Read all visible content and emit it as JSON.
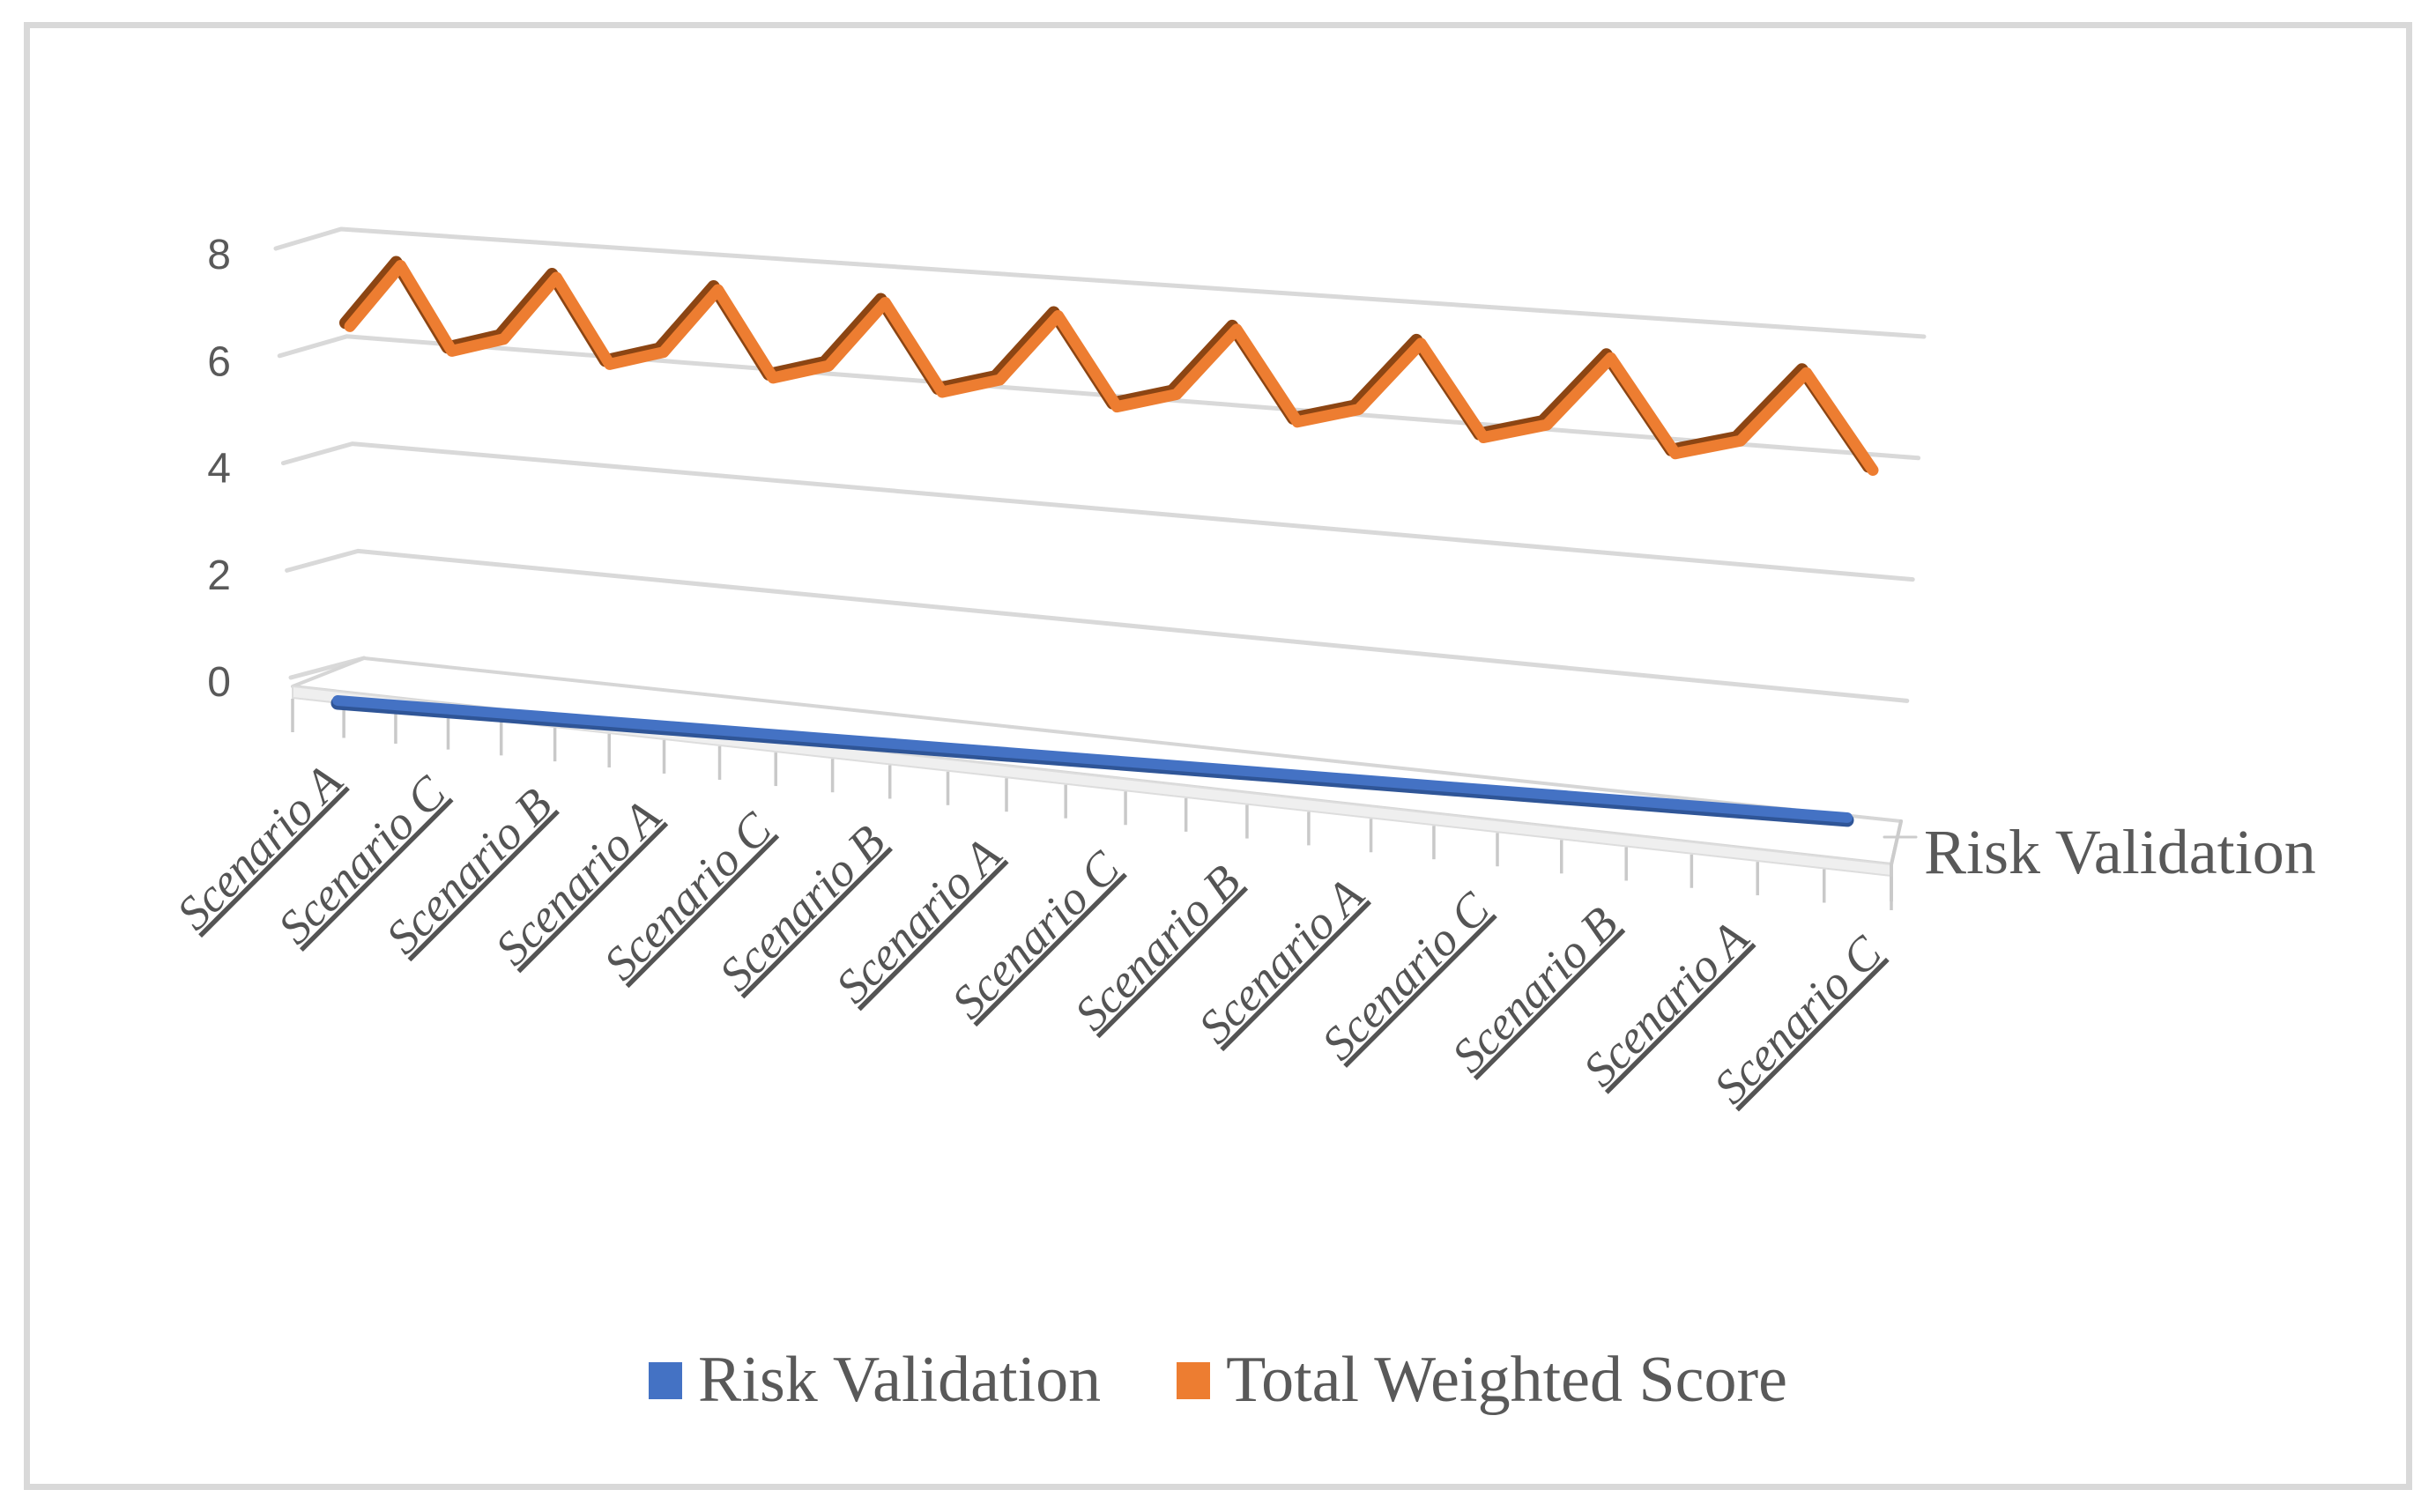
{
  "figure": {
    "background": "#FFFFFF",
    "border_color": "#D9D9D9"
  },
  "chart": {
    "depth_axis_label": "Risk Validation"
  },
  "legend": {
    "position": "bottom",
    "items": [
      {
        "label": "Risk Validation",
        "color": "#4472C4"
      },
      {
        "label": "Total Weighted Score",
        "color": "#ED7D31"
      }
    ]
  },
  "chart_data": {
    "type": "line",
    "projection": "3d",
    "title": "",
    "xlabel": "",
    "ylabel": "",
    "grid": true,
    "legend_position": "bottom",
    "categories": [
      "Scenario A",
      "Scenario B",
      "Scenario C",
      "Scenario A",
      "Scenario B",
      "Scenario C",
      "Scenario A",
      "Scenario B",
      "Scenario C",
      "Scenario A",
      "Scenario B",
      "Scenario C",
      "Scenario A",
      "Scenario B",
      "Scenario C",
      "Scenario A",
      "Scenario B",
      "Scenario C",
      "Scenario A",
      "Scenario B",
      "Scenario C",
      "Scenario A",
      "Scenario B",
      "Scenario C",
      "Scenario A",
      "Scenario B",
      "Scenario C"
    ],
    "category_axis": {
      "label_interval": 2,
      "visible_labels": [
        "Scenario A",
        "Scenario C",
        "Scenario B",
        "Scenario A",
        "Scenario C",
        "Scenario B",
        "Scenario A",
        "Scenario C",
        "Scenario B",
        "Scenario A",
        "Scenario C",
        "Scenario B",
        "Scenario A",
        "Scenario C"
      ],
      "text_color": "#545454"
    },
    "value_axis": {
      "min": 0,
      "max": 8,
      "ticks": [
        0,
        2,
        4,
        6,
        8
      ],
      "text_color": "#595959"
    },
    "depth_axis": {
      "labels": [
        "Risk Validation"
      ],
      "text_color": "#595959"
    },
    "series": [
      {
        "name": "Risk Validation",
        "color": "#4472C4",
        "shadow_color": "#2F5597",
        "values": [
          0.5,
          0.5,
          0.5,
          0.5,
          0.5,
          0.5,
          0.5,
          0.5,
          0.5,
          0.5,
          0.5,
          0.5,
          0.5,
          0.5,
          0.5,
          0.5,
          0.5,
          0.5,
          0.5,
          0.5,
          0.5,
          0.5,
          0.5,
          0.5,
          0.5,
          0.5,
          0.5
        ]
      },
      {
        "name": "Total Weighted Score",
        "color": "#ED7D31",
        "shadow_color": "#8C4513",
        "values": [
          6.2,
          7.4,
          5.9,
          6.2,
          7.4,
          5.9,
          6.2,
          7.4,
          5.9,
          6.2,
          7.4,
          5.9,
          6.2,
          7.4,
          5.9,
          6.2,
          7.4,
          5.9,
          6.2,
          7.4,
          5.9,
          6.2,
          7.4,
          5.9,
          6.2,
          7.4,
          5.9
        ]
      }
    ],
    "gridline_color": "#D9D9D9"
  }
}
